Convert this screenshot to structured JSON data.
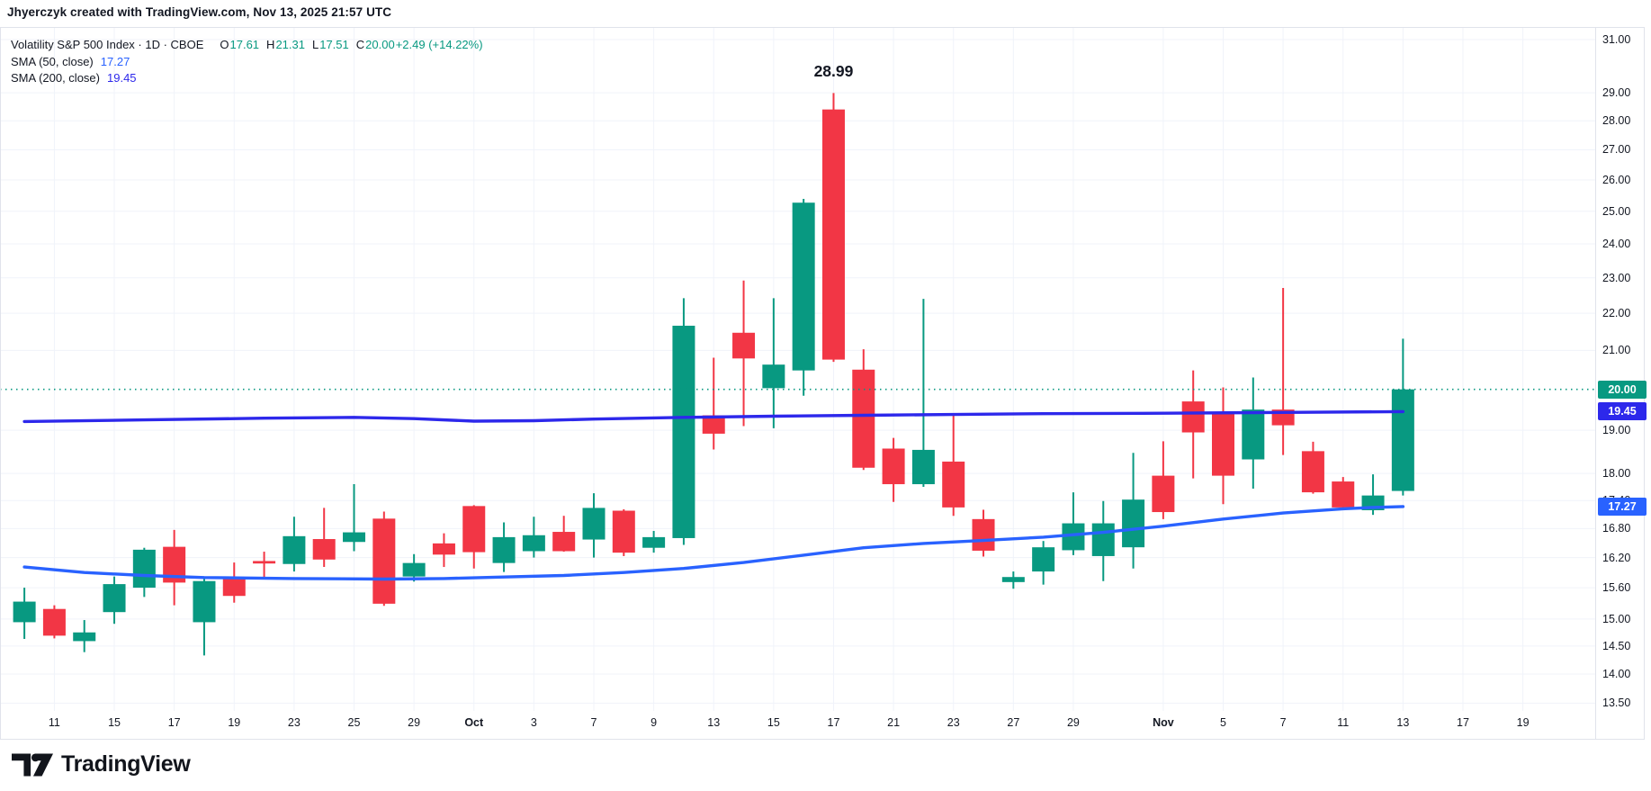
{
  "attribution": "Jhyerczyk created with TradingView.com, Nov 13, 2025 21:57 UTC",
  "legend": {
    "symbol_title": "Volatility S&P 500 Index · 1D · CBOE",
    "ohlc": {
      "o_label": "O",
      "o_value": "17.61",
      "h_label": "H",
      "h_value": "21.31",
      "l_label": "L",
      "l_value": "17.51",
      "c_label": "C",
      "c_value": "20.00",
      "change": "+2.49 (+14.22%)"
    },
    "indicators": [
      {
        "label": "SMA (50, close)",
        "value": "17.27"
      },
      {
        "label": "SMA (200, close)",
        "value": "19.45"
      }
    ]
  },
  "annotation": {
    "text": "28.99",
    "bar": 27,
    "anchor_price": 29.75
  },
  "colors": {
    "up": "#089981",
    "down": "#F23645",
    "sma50": "#2962FF",
    "sma200": "#2D28EB",
    "grid": "#f0f3fa",
    "border": "#e0e3eb",
    "text": "#131722",
    "last_price_line": "#089981"
  },
  "price_axis": {
    "ticks": [
      {
        "label": "31.00",
        "price": 31.0
      },
      {
        "label": "29.00",
        "price": 29.0
      },
      {
        "label": "28.00",
        "price": 28.0
      },
      {
        "label": "27.00",
        "price": 27.0
      },
      {
        "label": "26.00",
        "price": 26.0
      },
      {
        "label": "25.00",
        "price": 25.0
      },
      {
        "label": "24.00",
        "price": 24.0
      },
      {
        "label": "23.00",
        "price": 23.0
      },
      {
        "label": "22.00",
        "price": 22.0
      },
      {
        "label": "21.00",
        "price": 21.0
      },
      {
        "label": "19.00",
        "price": 19.0
      },
      {
        "label": "18.00",
        "price": 18.0
      },
      {
        "label": "17.40",
        "price": 17.4,
        "partially_hidden": true
      },
      {
        "label": "16.80",
        "price": 16.8
      },
      {
        "label": "16.20",
        "price": 16.2
      },
      {
        "label": "15.60",
        "price": 15.6
      },
      {
        "label": "15.00",
        "price": 15.0
      },
      {
        "label": "14.50",
        "price": 14.5
      },
      {
        "label": "14.00",
        "price": 14.0
      },
      {
        "label": "13.50",
        "price": 13.5
      }
    ],
    "badges": [
      {
        "label": "20.00",
        "price": 20.0,
        "color_key": "up"
      },
      {
        "label": "19.45",
        "price": 19.45,
        "color_key": "sma200"
      },
      {
        "label": "17.27",
        "price": 17.27,
        "color_key": "sma50"
      }
    ]
  },
  "time_axis": {
    "ticks": [
      {
        "label": "11",
        "bar": 1
      },
      {
        "label": "15",
        "bar": 3
      },
      {
        "label": "17",
        "bar": 5
      },
      {
        "label": "19",
        "bar": 7
      },
      {
        "label": "23",
        "bar": 9
      },
      {
        "label": "25",
        "bar": 11
      },
      {
        "label": "29",
        "bar": 13
      },
      {
        "label": "Oct",
        "bar": 15,
        "bold": true
      },
      {
        "label": "3",
        "bar": 17
      },
      {
        "label": "7",
        "bar": 19
      },
      {
        "label": "9",
        "bar": 21
      },
      {
        "label": "13",
        "bar": 23
      },
      {
        "label": "15",
        "bar": 25
      },
      {
        "label": "17",
        "bar": 27
      },
      {
        "label": "21",
        "bar": 29
      },
      {
        "label": "23",
        "bar": 31
      },
      {
        "label": "27",
        "bar": 33
      },
      {
        "label": "29",
        "bar": 35
      },
      {
        "label": "Nov",
        "bar": 38,
        "bold": true
      },
      {
        "label": "5",
        "bar": 40
      },
      {
        "label": "7",
        "bar": 42
      },
      {
        "label": "11",
        "bar": 44
      },
      {
        "label": "13",
        "bar": 46
      },
      {
        "label": "17",
        "bar": 48
      },
      {
        "label": "19",
        "bar": 50
      }
    ]
  },
  "chart_data": {
    "type": "candlestick",
    "title": "Volatility S&P 500 Index",
    "timeframe": "1D",
    "exchange": "CBOE",
    "scale": "log",
    "ylim": [
      13.5,
      31.0
    ],
    "last_price": 20.0,
    "grid": true,
    "candles": [
      {
        "date": "Sep 10",
        "o": 14.94,
        "h": 15.6,
        "l": 14.63,
        "c": 15.33
      },
      {
        "date": "Sep 11",
        "o": 15.19,
        "h": 15.26,
        "l": 14.64,
        "c": 14.69
      },
      {
        "date": "Sep 12",
        "o": 14.59,
        "h": 14.98,
        "l": 14.39,
        "c": 14.75
      },
      {
        "date": "Sep 15",
        "o": 15.13,
        "h": 15.82,
        "l": 14.91,
        "c": 15.67
      },
      {
        "date": "Sep 16",
        "o": 15.6,
        "h": 16.4,
        "l": 15.42,
        "c": 16.36
      },
      {
        "date": "Sep 17",
        "o": 16.42,
        "h": 16.77,
        "l": 15.26,
        "c": 15.7
      },
      {
        "date": "Sep 18",
        "o": 14.94,
        "h": 15.81,
        "l": 14.33,
        "c": 15.73
      },
      {
        "date": "Sep 19",
        "o": 15.77,
        "h": 16.1,
        "l": 15.31,
        "c": 15.44
      },
      {
        "date": "Sep 22",
        "o": 16.13,
        "h": 16.32,
        "l": 15.8,
        "c": 16.08
      },
      {
        "date": "Sep 23",
        "o": 16.07,
        "h": 17.05,
        "l": 15.92,
        "c": 16.64
      },
      {
        "date": "Sep 24",
        "o": 16.58,
        "h": 17.24,
        "l": 16.01,
        "c": 16.16
      },
      {
        "date": "Sep 25",
        "o": 16.52,
        "h": 17.76,
        "l": 16.33,
        "c": 16.72
      },
      {
        "date": "Sep 26",
        "o": 17.01,
        "h": 17.16,
        "l": 15.25,
        "c": 15.29
      },
      {
        "date": "Sep 29",
        "o": 15.82,
        "h": 16.27,
        "l": 15.72,
        "c": 16.09
      },
      {
        "date": "Sep 30",
        "o": 16.49,
        "h": 16.7,
        "l": 16.01,
        "c": 16.26
      },
      {
        "date": "Oct 1",
        "o": 17.28,
        "h": 17.3,
        "l": 15.98,
        "c": 16.31
      },
      {
        "date": "Oct 2",
        "o": 16.09,
        "h": 16.93,
        "l": 15.91,
        "c": 16.62
      },
      {
        "date": "Oct 3",
        "o": 16.33,
        "h": 17.05,
        "l": 16.2,
        "c": 16.66
      },
      {
        "date": "Oct 6",
        "o": 16.73,
        "h": 17.07,
        "l": 16.32,
        "c": 16.33
      },
      {
        "date": "Oct 7",
        "o": 16.57,
        "h": 17.56,
        "l": 16.2,
        "c": 17.24
      },
      {
        "date": "Oct 8",
        "o": 17.18,
        "h": 17.21,
        "l": 16.23,
        "c": 16.3
      },
      {
        "date": "Oct 9",
        "o": 16.4,
        "h": 16.75,
        "l": 16.3,
        "c": 16.62
      },
      {
        "date": "Oct 10",
        "o": 16.6,
        "h": 22.42,
        "l": 16.46,
        "c": 21.66
      },
      {
        "date": "Oct 13",
        "o": 19.36,
        "h": 20.81,
        "l": 18.55,
        "c": 18.92
      },
      {
        "date": "Oct 14",
        "o": 21.47,
        "h": 22.92,
        "l": 19.1,
        "c": 20.79
      },
      {
        "date": "Oct 15",
        "o": 20.03,
        "h": 22.42,
        "l": 19.05,
        "c": 20.63
      },
      {
        "date": "Oct 16",
        "o": 20.48,
        "h": 25.39,
        "l": 19.84,
        "c": 25.27
      },
      {
        "date": "Oct 17",
        "o": 28.4,
        "h": 28.99,
        "l": 20.7,
        "c": 20.76
      },
      {
        "date": "Oct 20",
        "o": 20.5,
        "h": 21.03,
        "l": 18.08,
        "c": 18.13
      },
      {
        "date": "Oct 21",
        "o": 18.57,
        "h": 18.82,
        "l": 17.37,
        "c": 17.76
      },
      {
        "date": "Oct 22",
        "o": 17.76,
        "h": 22.4,
        "l": 17.7,
        "c": 18.54
      },
      {
        "date": "Oct 23",
        "o": 18.27,
        "h": 19.35,
        "l": 17.07,
        "c": 17.25
      },
      {
        "date": "Oct 24",
        "o": 17.0,
        "h": 17.2,
        "l": 16.22,
        "c": 16.34
      },
      {
        "date": "Oct 27",
        "o": 15.71,
        "h": 15.92,
        "l": 15.58,
        "c": 15.81
      },
      {
        "date": "Oct 28",
        "o": 15.92,
        "h": 16.54,
        "l": 15.66,
        "c": 16.41
      },
      {
        "date": "Oct 29",
        "o": 16.35,
        "h": 17.58,
        "l": 16.25,
        "c": 16.91
      },
      {
        "date": "Oct 30",
        "o": 16.23,
        "h": 17.39,
        "l": 15.73,
        "c": 16.91
      },
      {
        "date": "Oct 31",
        "o": 16.41,
        "h": 18.47,
        "l": 15.98,
        "c": 17.42
      },
      {
        "date": "Nov 3",
        "o": 17.95,
        "h": 18.74,
        "l": 17.0,
        "c": 17.15
      },
      {
        "date": "Nov 4",
        "o": 19.7,
        "h": 20.48,
        "l": 17.89,
        "c": 18.95
      },
      {
        "date": "Nov 5",
        "o": 19.4,
        "h": 20.05,
        "l": 17.32,
        "c": 17.95
      },
      {
        "date": "Nov 6",
        "o": 18.32,
        "h": 20.3,
        "l": 17.66,
        "c": 19.5
      },
      {
        "date": "Nov 7",
        "o": 19.5,
        "h": 22.71,
        "l": 18.42,
        "c": 19.12
      },
      {
        "date": "Nov 10",
        "o": 18.51,
        "h": 18.73,
        "l": 17.55,
        "c": 17.58
      },
      {
        "date": "Nov 11",
        "o": 17.82,
        "h": 17.92,
        "l": 17.2,
        "c": 17.25
      },
      {
        "date": "Nov 12",
        "o": 17.19,
        "h": 17.98,
        "l": 17.09,
        "c": 17.51
      },
      {
        "date": "Nov 13",
        "o": 17.61,
        "h": 21.31,
        "l": 17.51,
        "c": 20.0
      }
    ],
    "series": [
      {
        "name": "SMA 50",
        "points": [
          [
            0,
            16.01
          ],
          [
            2,
            15.9
          ],
          [
            4,
            15.84
          ],
          [
            6,
            15.8
          ],
          [
            9,
            15.78
          ],
          [
            12,
            15.77
          ],
          [
            14,
            15.78
          ],
          [
            16,
            15.81
          ],
          [
            18,
            15.84
          ],
          [
            20,
            15.9
          ],
          [
            22,
            15.98
          ],
          [
            24,
            16.1
          ],
          [
            26,
            16.25
          ],
          [
            28,
            16.4
          ],
          [
            30,
            16.49
          ],
          [
            32,
            16.55
          ],
          [
            34,
            16.62
          ],
          [
            36,
            16.72
          ],
          [
            38,
            16.85
          ],
          [
            40,
            17.0
          ],
          [
            42,
            17.13
          ],
          [
            44,
            17.22
          ],
          [
            45,
            17.25
          ],
          [
            46,
            17.27
          ]
        ]
      },
      {
        "name": "SMA 200",
        "points": [
          [
            0,
            19.21
          ],
          [
            4,
            19.25
          ],
          [
            8,
            19.29
          ],
          [
            11,
            19.31
          ],
          [
            13,
            19.28
          ],
          [
            15,
            19.22
          ],
          [
            17,
            19.23
          ],
          [
            19,
            19.27
          ],
          [
            22,
            19.31
          ],
          [
            25,
            19.34
          ],
          [
            28,
            19.36
          ],
          [
            31,
            19.38
          ],
          [
            34,
            19.4
          ],
          [
            38,
            19.41
          ],
          [
            42,
            19.43
          ],
          [
            46,
            19.45
          ]
        ]
      }
    ]
  },
  "logo": {
    "text": "TradingView"
  }
}
